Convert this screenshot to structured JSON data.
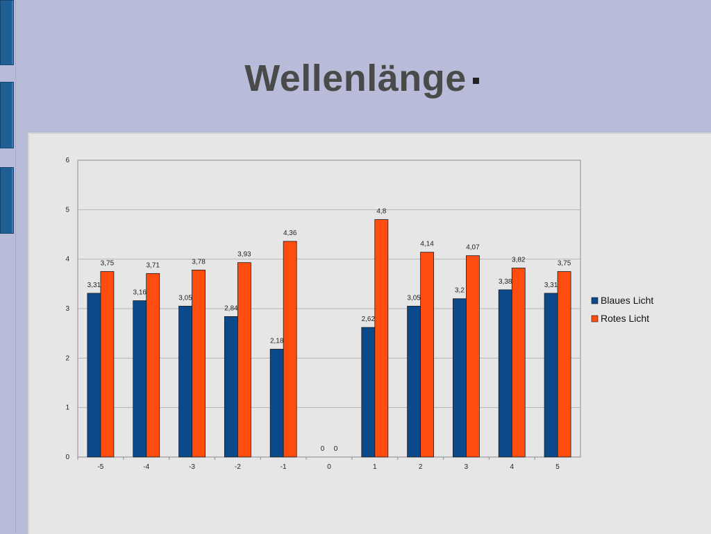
{
  "slide": {
    "title": "Wellenlänge"
  },
  "colors": {
    "background": "#b9bcd9",
    "chart_panel": "#e6e6e6",
    "blue_series": "#0b4a8a",
    "red_series": "#ff4d10",
    "tab": "#1f5f96"
  },
  "chart_data": {
    "type": "bar",
    "title": "",
    "xlabel": "",
    "ylabel": "",
    "categories": [
      "-5",
      "-4",
      "-3",
      "-2",
      "-1",
      "0",
      "1",
      "2",
      "3",
      "4",
      "5"
    ],
    "ylim": [
      0,
      6
    ],
    "yticks": [
      "0",
      "1",
      "2",
      "3",
      "4",
      "5",
      "6"
    ],
    "grid": true,
    "legend": "right",
    "series": [
      {
        "name": "Blaues Licht",
        "color": "#0b4a8a",
        "values": [
          3.31,
          3.16,
          3.05,
          2.84,
          2.18,
          0,
          2.62,
          3.05,
          3.2,
          3.38,
          3.31
        ],
        "labels": [
          "3,31",
          "3,16",
          "3,05",
          "2,84",
          "2,18",
          "0",
          "2,62",
          "3,05",
          "3,2",
          "3,38",
          "3,31"
        ]
      },
      {
        "name": "Rotes Licht",
        "color": "#ff4d10",
        "values": [
          3.75,
          3.71,
          3.78,
          3.93,
          4.36,
          0,
          4.8,
          4.14,
          4.07,
          3.82,
          3.75
        ],
        "labels": [
          "3,75",
          "3,71",
          "3,78",
          "3,93",
          "4,36",
          "0",
          "4,8",
          "4,14",
          "4,07",
          "3,82",
          "3,75"
        ]
      }
    ]
  }
}
